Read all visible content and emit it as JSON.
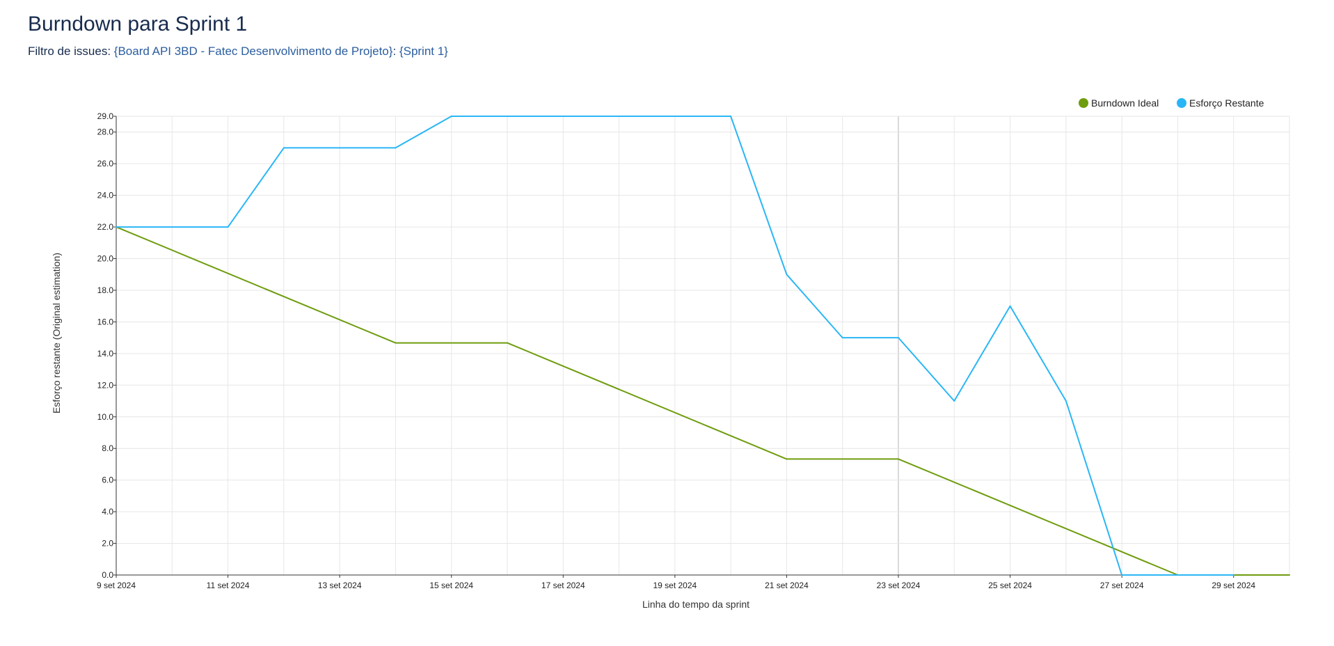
{
  "header": {
    "title": "Burndown para Sprint 1",
    "filter_prefix": "Filtro de issues:",
    "filter_board": "{Board API 3BD - Fatec Desenvolvimento de Projeto}",
    "filter_separator": ":",
    "filter_sprint": "{Sprint 1}"
  },
  "chart_data": {
    "type": "line",
    "title": "",
    "xlabel": "Linha do tempo da sprint",
    "ylabel": "Esforço restante (Original estimation)",
    "ylim": [
      0,
      29
    ],
    "y_ticks": [
      "0.0",
      "2.0",
      "4.0",
      "6.0",
      "8.0",
      "10.0",
      "12.0",
      "14.0",
      "16.0",
      "18.0",
      "20.0",
      "22.0",
      "24.0",
      "26.0",
      "28.0",
      "29.0"
    ],
    "x_start_date": "9 set 2024",
    "x_end_date": "30 set 2024",
    "x_ticks": [
      "9 set 2024",
      "11 set 2024",
      "13 set 2024",
      "15 set 2024",
      "17 set 2024",
      "19 set 2024",
      "21 set 2024",
      "23 set 2024",
      "25 set 2024",
      "27 set 2024",
      "29 set 2024"
    ],
    "grid": true,
    "legend_position": "top-right",
    "series": [
      {
        "name": "Burndown Ideal",
        "color": "#6f9c0e",
        "points": [
          {
            "x": "9 set 2024",
            "y": 22
          },
          {
            "x": "14 set 2024",
            "y": 14.67
          },
          {
            "x": "16 set 2024",
            "y": 14.67
          },
          {
            "x": "21 set 2024",
            "y": 7.33
          },
          {
            "x": "23 set 2024",
            "y": 7.33
          },
          {
            "x": "28 set 2024",
            "y": 0
          },
          {
            "x": "30 set 2024",
            "y": 0
          }
        ]
      },
      {
        "name": "Esforço Restante",
        "color": "#29b6f6",
        "points": [
          {
            "x": "9 set 2024",
            "y": 22
          },
          {
            "x": "11 set 2024",
            "y": 22
          },
          {
            "x": "12 set 2024",
            "y": 27
          },
          {
            "x": "14 set 2024",
            "y": 27
          },
          {
            "x": "15 set 2024",
            "y": 29
          },
          {
            "x": "20 set 2024",
            "y": 29
          },
          {
            "x": "21 set 2024",
            "y": 19
          },
          {
            "x": "22 set 2024",
            "y": 15
          },
          {
            "x": "23 set 2024",
            "y": 15
          },
          {
            "x": "24 set 2024",
            "y": 11
          },
          {
            "x": "25 set 2024",
            "y": 17
          },
          {
            "x": "26 set 2024",
            "y": 11
          },
          {
            "x": "27 set 2024",
            "y": 0
          },
          {
            "x": "29 set 2024",
            "y": 0
          }
        ]
      }
    ]
  }
}
